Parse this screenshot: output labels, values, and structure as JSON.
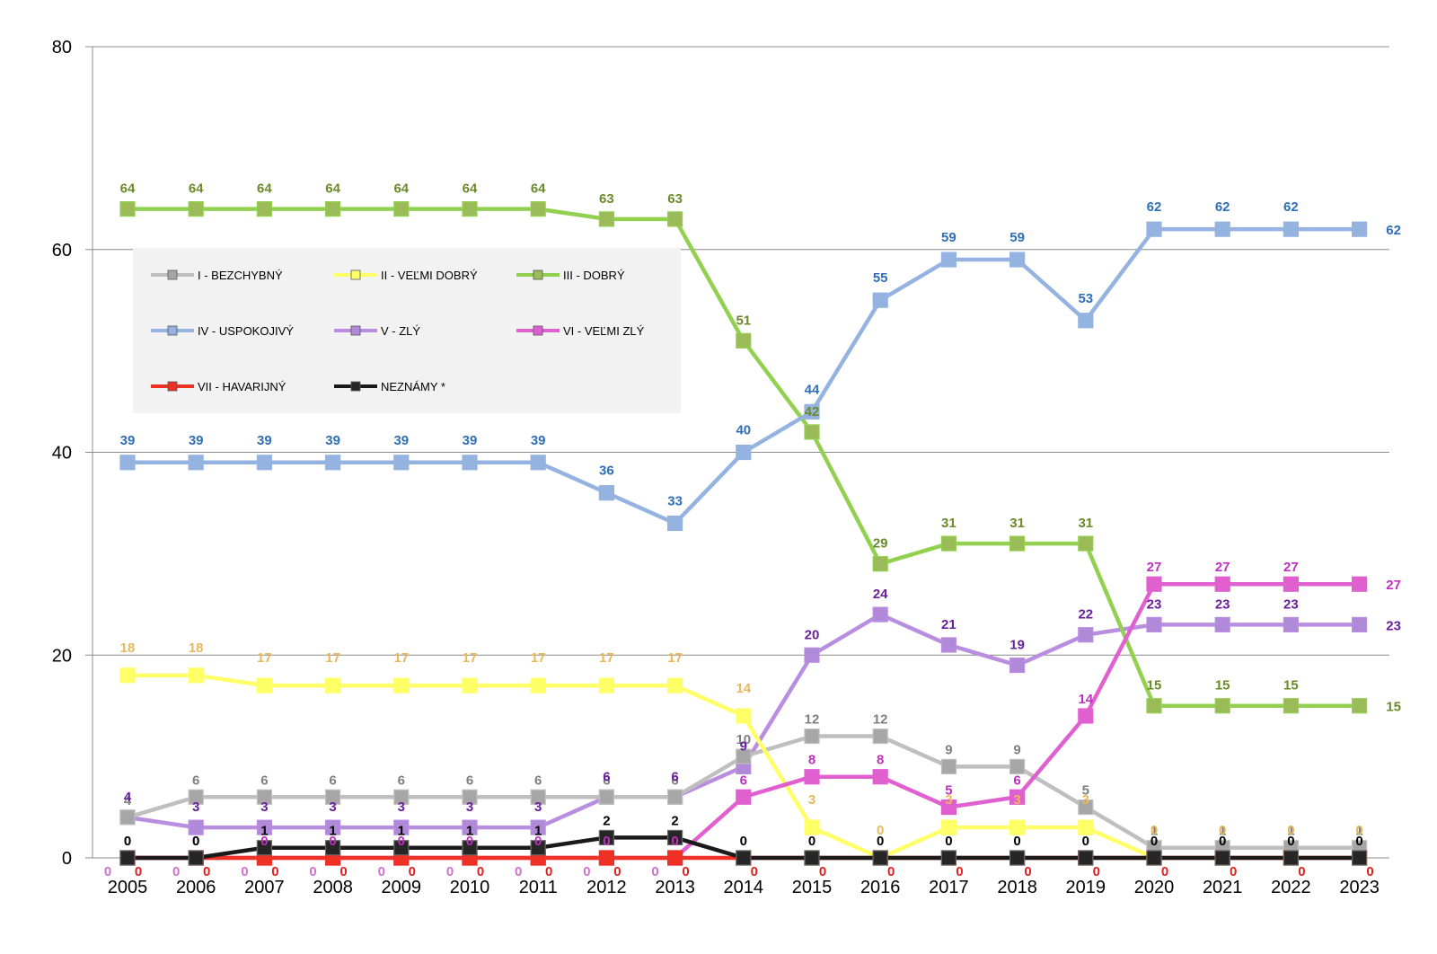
{
  "chart_data": {
    "type": "line",
    "title": "",
    "xlabel": "",
    "ylabel": "",
    "ylim": [
      0,
      80
    ],
    "yticks": [
      0,
      20,
      40,
      60,
      80
    ],
    "grid": true,
    "legend_position": "top-left",
    "x": [
      "2005",
      "2006",
      "2007",
      "2008",
      "2009",
      "2010",
      "2011",
      "2012",
      "2013",
      "2014",
      "2015",
      "2016",
      "2017",
      "2018",
      "2019",
      "2020",
      "2021",
      "2022",
      "2023"
    ],
    "series": [
      {
        "name": "I - BEZCHYBNÝ",
        "line_color": "#bfbfbf",
        "marker_color": "#a6a6a6",
        "label_color": "#7f7f7f",
        "values": [
          4,
          6,
          6,
          6,
          6,
          6,
          6,
          6,
          6,
          10,
          12,
          12,
          9,
          9,
          5,
          1,
          1,
          1,
          1
        ]
      },
      {
        "name": "II - VEĽMI DOBRÝ",
        "line_color": "#ffff66",
        "marker_color": "#ffff66",
        "label_color": "#e8b85a",
        "values": [
          18,
          18,
          17,
          17,
          17,
          17,
          17,
          17,
          17,
          14,
          3,
          0,
          3,
          3,
          3,
          0,
          0,
          0,
          0
        ]
      },
      {
        "name": "III - DOBRÝ",
        "line_color": "#92d050",
        "marker_color": "#9bbb59",
        "label_color": "#6b8a2a",
        "values": [
          64,
          64,
          64,
          64,
          64,
          64,
          64,
          63,
          63,
          51,
          42,
          29,
          31,
          31,
          31,
          15,
          15,
          15,
          15
        ]
      },
      {
        "name": "IV - USPOKOJIVÝ",
        "line_color": "#95b3e0",
        "marker_color": "#95b3e0",
        "label_color": "#2f6fb8",
        "values": [
          39,
          39,
          39,
          39,
          39,
          39,
          39,
          36,
          33,
          40,
          44,
          55,
          59,
          59,
          53,
          62,
          62,
          62,
          62
        ]
      },
      {
        "name": "V - ZLÝ",
        "line_color": "#b98ee0",
        "marker_color": "#b08ad8",
        "label_color": "#6a1f9a",
        "values": [
          4,
          3,
          3,
          3,
          3,
          3,
          3,
          6,
          6,
          9,
          20,
          24,
          21,
          19,
          22,
          23,
          23,
          23,
          23
        ]
      },
      {
        "name": "VI - VEĽMI ZLÝ",
        "line_color": "#e060d0",
        "marker_color": "#e060d0",
        "label_color": "#c030c0",
        "values": [
          0,
          0,
          0,
          0,
          0,
          0,
          0,
          0,
          0,
          6,
          8,
          8,
          5,
          6,
          14,
          27,
          27,
          27,
          27
        ]
      },
      {
        "name": "VII - HAVARIJNÝ",
        "line_color": "#ee3124",
        "marker_color": "#ee3124",
        "label_color": "#e02020",
        "values": [
          0,
          0,
          0,
          0,
          0,
          0,
          0,
          0,
          0,
          0,
          0,
          0,
          0,
          0,
          0,
          0,
          0,
          0,
          0
        ]
      },
      {
        "name": "NEZNÁMY *",
        "line_color": "#1a1a1a",
        "marker_color": "#262626",
        "label_color": "#000000",
        "values": [
          0,
          0,
          1,
          1,
          1,
          1,
          1,
          2,
          2,
          0,
          0,
          0,
          0,
          0,
          0,
          0,
          0,
          0,
          0
        ]
      }
    ]
  }
}
